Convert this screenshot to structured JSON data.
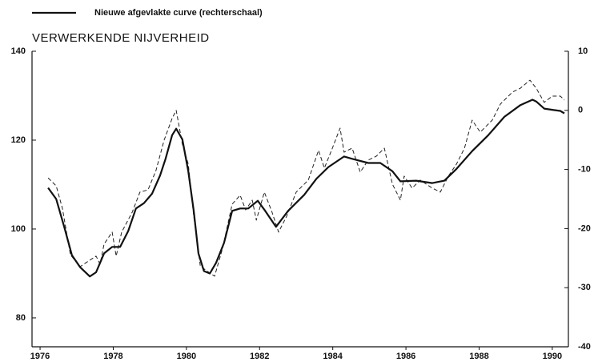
{
  "chart_data": {
    "type": "line",
    "title": "VERWERKENDE NIJVERHEID",
    "xlim": [
      1975.78,
      1990.44
    ],
    "xticks": [
      1976,
      1978,
      1980,
      1982,
      1984,
      1986,
      1988,
      1990
    ],
    "ylim": [
      73.5,
      140
    ],
    "yticks": [
      80,
      100,
      120,
      140
    ],
    "y2lim": [
      -40,
      10
    ],
    "y2ticks": [
      -40,
      -30,
      -20,
      -10,
      0,
      10
    ],
    "grid": false,
    "legend": "top-left",
    "series": [
      {
        "color": "#222222",
        "line_style": "dashed",
        "axis": "y",
        "x": [
          1976.22,
          1976.44,
          1976.61,
          1976.83,
          1977.09,
          1977.36,
          1977.53,
          1977.64,
          1977.75,
          1977.97,
          1978.08,
          1978.23,
          1978.52,
          1978.73,
          1978.95,
          1979.17,
          1979.39,
          1979.61,
          1979.72,
          1979.89,
          1980.05,
          1980.2,
          1980.38,
          1980.55,
          1980.77,
          1980.99,
          1981.25,
          1981.47,
          1981.62,
          1981.8,
          1981.91,
          1982.13,
          1982.34,
          1982.52,
          1982.74,
          1983.0,
          1983.33,
          1983.61,
          1983.77,
          1983.99,
          1984.2,
          1984.31,
          1984.53,
          1984.75,
          1984.97,
          1985.19,
          1985.41,
          1985.63,
          1985.85,
          1985.95,
          1986.17,
          1986.39,
          1986.72,
          1986.94,
          1987.16,
          1987.38,
          1987.6,
          1987.81,
          1988.03,
          1988.36,
          1988.58,
          1988.91,
          1989.13,
          1989.39,
          1989.56,
          1989.78,
          1990.0,
          1990.22,
          1990.33
        ],
        "values": [
          111.5,
          109.7,
          104.7,
          94.2,
          91.5,
          93,
          93.9,
          92.1,
          96.6,
          99.3,
          93.9,
          99.3,
          103.8,
          108.3,
          108.8,
          113.2,
          120,
          124.9,
          126.7,
          119.1,
          114.6,
          102.9,
          91.7,
          90.6,
          89.4,
          95.7,
          105.6,
          107.6,
          104.3,
          106.5,
          102,
          108.3,
          103.8,
          99.3,
          102.9,
          108.3,
          111,
          117.7,
          113.7,
          118.2,
          122.7,
          117.3,
          118.2,
          112.8,
          115.5,
          116.4,
          118.2,
          110.1,
          106.5,
          111.9,
          109.2,
          111,
          109.2,
          108.3,
          111.9,
          114.6,
          118.2,
          124.5,
          121.8,
          124.5,
          128.1,
          130.8,
          131.7,
          133.5,
          131.7,
          128.5,
          129.9,
          129.9,
          129
        ]
      },
      {
        "name": "Nieuwe afgevlakte curve (rechterschaal)",
        "color": "#111111",
        "line_style": "solid",
        "axis": "y2",
        "x": [
          1976.22,
          1976.44,
          1976.66,
          1976.87,
          1977.09,
          1977.36,
          1977.53,
          1977.75,
          1977.97,
          1978.19,
          1978.41,
          1978.62,
          1978.84,
          1979.06,
          1979.28,
          1979.43,
          1979.61,
          1979.72,
          1979.89,
          1980.05,
          1980.2,
          1980.33,
          1980.48,
          1980.64,
          1980.81,
          1981.03,
          1981.25,
          1981.47,
          1981.69,
          1981.95,
          1982.13,
          1982.45,
          1982.78,
          1983.22,
          1983.55,
          1983.88,
          1984.31,
          1984.53,
          1984.97,
          1985.3,
          1985.63,
          1985.85,
          1986.28,
          1986.72,
          1987.05,
          1987.38,
          1987.81,
          1988.25,
          1988.69,
          1989.13,
          1989.46,
          1989.56,
          1989.78,
          1990.0,
          1990.22,
          1990.33
        ],
        "values": [
          -13.1,
          -15,
          -19.7,
          -24.5,
          -26.5,
          -28.1,
          -27.4,
          -24.2,
          -23.1,
          -23.1,
          -20.4,
          -16.6,
          -15.7,
          -14.1,
          -11,
          -8.2,
          -4.2,
          -3.1,
          -4.9,
          -10.3,
          -17,
          -24.2,
          -27.2,
          -27.6,
          -25.8,
          -22.4,
          -17,
          -16.6,
          -16.6,
          -15.3,
          -16.8,
          -19.7,
          -17,
          -14.3,
          -11.6,
          -9.6,
          -7.8,
          -8.2,
          -8.9,
          -8.9,
          -10.3,
          -12,
          -11.9,
          -12.3,
          -11.9,
          -9.9,
          -6.9,
          -4.2,
          -1.1,
          0.9,
          1.8,
          1.5,
          0.3,
          0.1,
          -0.1,
          -0.5
        ]
      }
    ]
  }
}
